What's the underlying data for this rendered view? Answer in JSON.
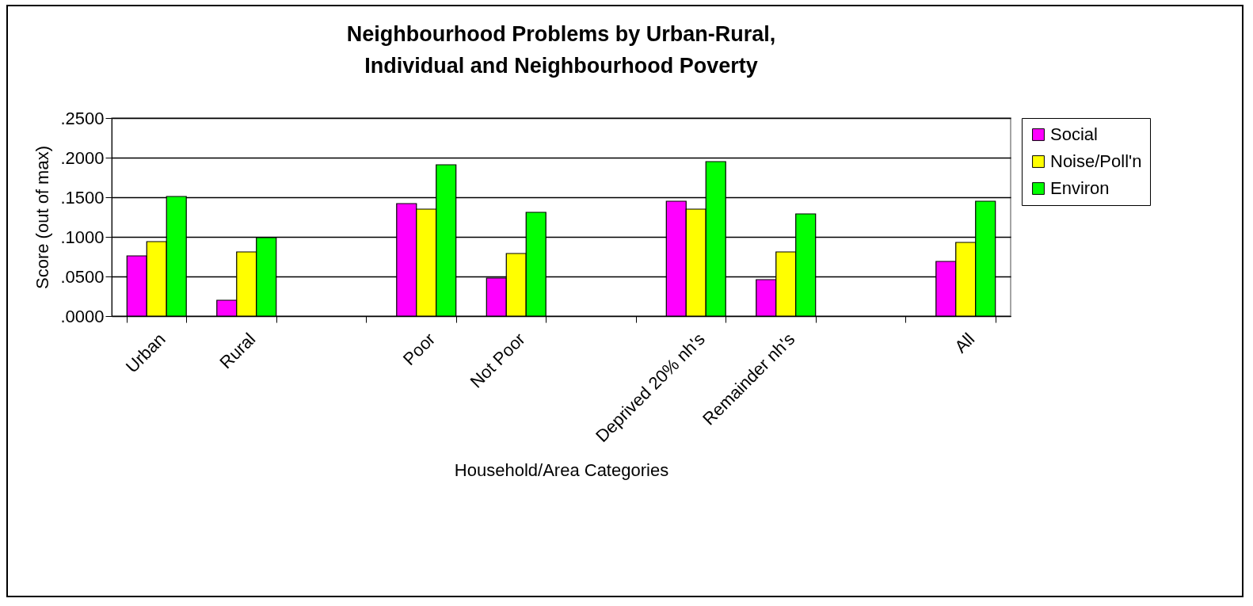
{
  "chart_data": {
    "type": "bar",
    "title": "Neighbourhood Problems by Urban-Rural, Individual and Neighbourhood Poverty",
    "xlabel": "Household/Area Categories",
    "ylabel": "Score (out of max)",
    "categories": [
      "Urban",
      "Rural",
      null,
      "Poor",
      "Not Poor",
      null,
      "Deprived 20% nh's",
      "Remainder nh's",
      null,
      "All"
    ],
    "series": [
      {
        "name": "Social",
        "color": "#ff00ff",
        "values": [
          0.076,
          0.02,
          null,
          0.142,
          0.048,
          null,
          0.145,
          0.046,
          null,
          0.069
        ]
      },
      {
        "name": "Noise/Poll'n",
        "color": "#ffff00",
        "values": [
          0.094,
          0.081,
          null,
          0.135,
          0.079,
          null,
          0.135,
          0.081,
          null,
          0.093
        ]
      },
      {
        "name": "Environ",
        "color": "#00ff00",
        "values": [
          0.151,
          0.099,
          null,
          0.191,
          0.131,
          null,
          0.195,
          0.129,
          null,
          0.145
        ]
      }
    ],
    "ylim": [
      0,
      0.25
    ],
    "yticks": [
      {
        "value": 0,
        "label": ".0000"
      },
      {
        "value": 0.05,
        "label": ".0500"
      },
      {
        "value": 0.1,
        "label": ".1000"
      },
      {
        "value": 0.15,
        "label": ".1500"
      },
      {
        "value": 0.2,
        "label": ".2000"
      },
      {
        "value": 0.25,
        "label": ".2500"
      }
    ],
    "grid": "y",
    "legend": "right"
  }
}
